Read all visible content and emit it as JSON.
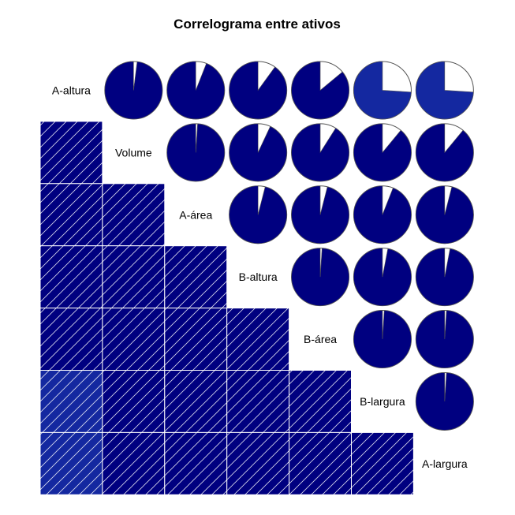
{
  "chart_data": {
    "type": "correlogram",
    "title": "Correlograma entre ativos",
    "variables": [
      "A-altura",
      "Volume",
      "A-área",
      "B-altura",
      "B-área",
      "B-largura",
      "A-largura"
    ],
    "lower_panel": "shade",
    "upper_panel": "pie",
    "matrix": [
      [
        1.0,
        0.98,
        0.94,
        0.9,
        0.86,
        0.74,
        0.74
      ],
      [
        0.98,
        1.0,
        0.99,
        0.93,
        0.91,
        0.89,
        0.89
      ],
      [
        0.94,
        0.99,
        1.0,
        0.96,
        0.96,
        0.94,
        0.96
      ],
      [
        0.9,
        0.93,
        0.96,
        1.0,
        0.99,
        0.97,
        0.97
      ],
      [
        0.86,
        0.91,
        0.96,
        0.99,
        1.0,
        0.99,
        0.99
      ],
      [
        0.74,
        0.89,
        0.94,
        0.97,
        0.99,
        1.0,
        0.99
      ],
      [
        0.74,
        0.89,
        0.96,
        0.97,
        0.99,
        0.99,
        1.0
      ]
    ],
    "colors": {
      "strong": "#000080",
      "medium": "#1428A0",
      "hatch": "#ffffff",
      "pie_empty": "#ffffff",
      "pie_outline": "#555555"
    }
  }
}
